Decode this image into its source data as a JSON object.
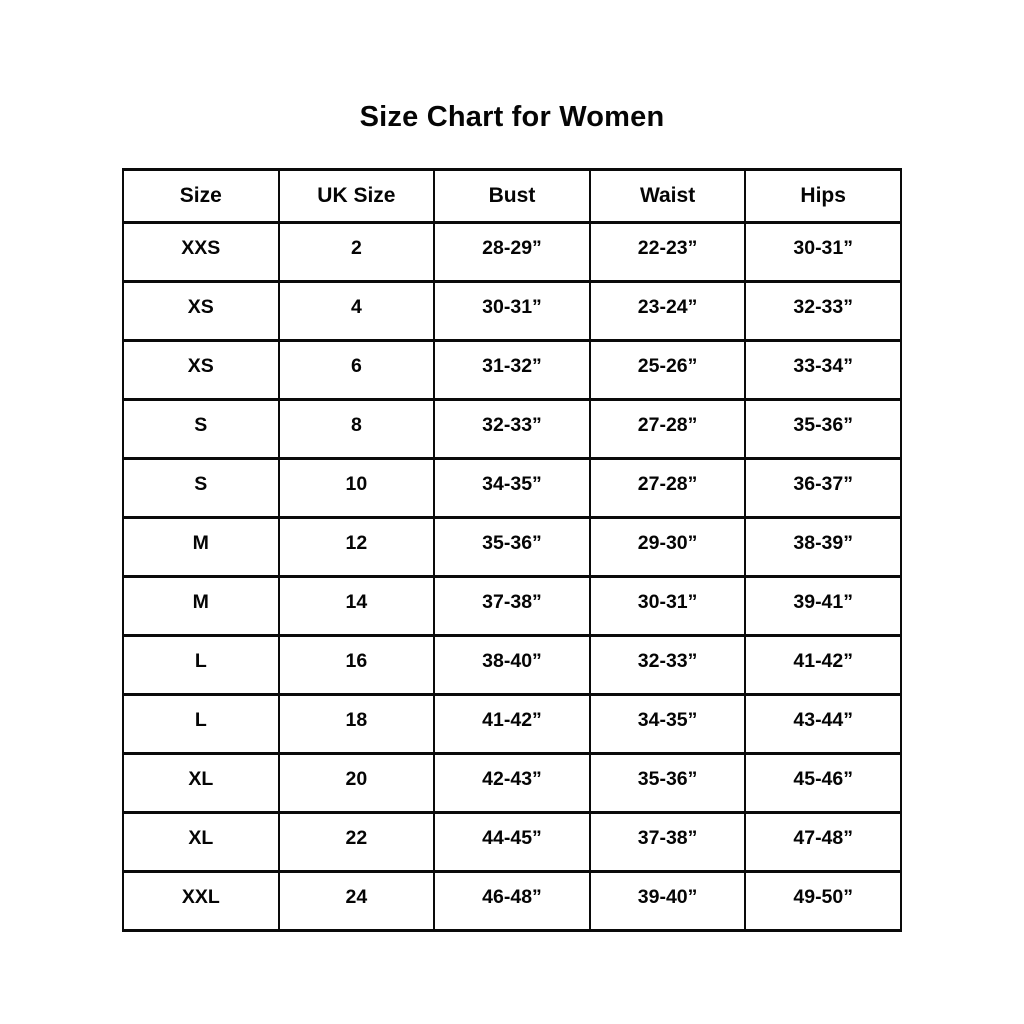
{
  "title": "Size Chart for Women",
  "chart_data": {
    "type": "table",
    "title": "Size Chart for Women",
    "columns": [
      "Size",
      "UK Size",
      "Bust",
      "Waist",
      "Hips"
    ],
    "rows": [
      [
        "XXS",
        "2",
        "28-29”",
        "22-23”",
        "30-31”"
      ],
      [
        "XS",
        "4",
        "30-31”",
        "23-24”",
        "32-33”"
      ],
      [
        "XS",
        "6",
        "31-32”",
        "25-26”",
        "33-34”"
      ],
      [
        "S",
        "8",
        "32-33”",
        "27-28”",
        "35-36”"
      ],
      [
        "S",
        "10",
        "34-35”",
        "27-28”",
        "36-37”"
      ],
      [
        "M",
        "12",
        "35-36”",
        "29-30”",
        "38-39”"
      ],
      [
        "M",
        "14",
        "37-38”",
        "30-31”",
        "39-41”"
      ],
      [
        "L",
        "16",
        "38-40”",
        "32-33”",
        "41-42”"
      ],
      [
        "L",
        "18",
        "41-42”",
        "34-35”",
        "43-44”"
      ],
      [
        "XL",
        "20",
        "42-43”",
        "35-36”",
        "45-46”"
      ],
      [
        "XL",
        "22",
        "44-45”",
        "37-38”",
        "47-48”"
      ],
      [
        "XXL",
        "24",
        "46-48”",
        "39-40”",
        "49-50”"
      ]
    ],
    "layout": {
      "text_color": "#050505",
      "border_color": "#0a0a0a",
      "background_color": "#ffffff",
      "grid": "on",
      "header_position": "top"
    }
  }
}
